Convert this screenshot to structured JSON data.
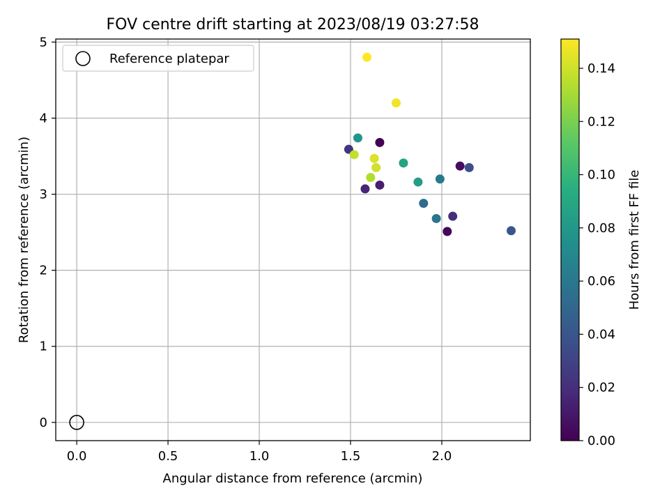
{
  "chart_data": {
    "type": "scatter",
    "title": "FOV centre drift starting at 2023/08/19 03:27:58",
    "xlabel": "Angular distance from reference (arcmin)",
    "ylabel": "Rotation from reference (arcmin)",
    "xlim": [
      -0.115,
      2.485
    ],
    "ylim": [
      -0.24,
      5.04
    ],
    "xticks": [
      0.0,
      0.5,
      1.0,
      1.5,
      2.0
    ],
    "xtick_labels": [
      "0.0",
      "0.5",
      "1.0",
      "1.5",
      "2.0"
    ],
    "yticks": [
      0,
      1,
      2,
      3,
      4,
      5
    ],
    "ytick_labels": [
      "0",
      "1",
      "2",
      "3",
      "4",
      "5"
    ],
    "grid": true,
    "legend": {
      "placement": "top-left",
      "entries": [
        "Reference platepar"
      ]
    },
    "reference_point": {
      "x": 0.0,
      "y": 0.0,
      "label": "Reference platepar"
    },
    "colorbar": {
      "label": "Hours from first FF file",
      "min": 0.0,
      "max": 0.151,
      "colormap": "viridis",
      "ticks": [
        0.0,
        0.02,
        0.04,
        0.06,
        0.08,
        0.1,
        0.12,
        0.14
      ],
      "tick_labels": [
        "0.00",
        "0.02",
        "0.04",
        "0.06",
        "0.08",
        "0.10",
        "0.12",
        "0.14"
      ]
    },
    "points": [
      {
        "x": 1.66,
        "y": 3.68,
        "c": 0.0
      },
      {
        "x": 2.03,
        "y": 2.51,
        "c": 0.003
      },
      {
        "x": 2.1,
        "y": 3.37,
        "c": 0.005
      },
      {
        "x": 1.66,
        "y": 3.12,
        "c": 0.013
      },
      {
        "x": 1.58,
        "y": 3.07,
        "c": 0.016
      },
      {
        "x": 2.06,
        "y": 2.71,
        "c": 0.02
      },
      {
        "x": 1.49,
        "y": 3.59,
        "c": 0.023
      },
      {
        "x": 2.15,
        "y": 3.35,
        "c": 0.036
      },
      {
        "x": 2.38,
        "y": 2.52,
        "c": 0.04
      },
      {
        "x": 1.9,
        "y": 2.88,
        "c": 0.053
      },
      {
        "x": 1.97,
        "y": 2.68,
        "c": 0.057
      },
      {
        "x": 1.99,
        "y": 3.2,
        "c": 0.061
      },
      {
        "x": 1.54,
        "y": 3.74,
        "c": 0.078
      },
      {
        "x": 1.87,
        "y": 3.16,
        "c": 0.083
      },
      {
        "x": 1.79,
        "y": 3.41,
        "c": 0.087
      },
      {
        "x": 1.61,
        "y": 3.22,
        "c": 0.133
      },
      {
        "x": 1.52,
        "y": 3.52,
        "c": 0.137
      },
      {
        "x": 1.64,
        "y": 3.35,
        "c": 0.14
      },
      {
        "x": 1.63,
        "y": 3.47,
        "c": 0.143
      },
      {
        "x": 1.75,
        "y": 4.2,
        "c": 0.148
      },
      {
        "x": 1.59,
        "y": 4.8,
        "c": 0.151
      }
    ]
  }
}
